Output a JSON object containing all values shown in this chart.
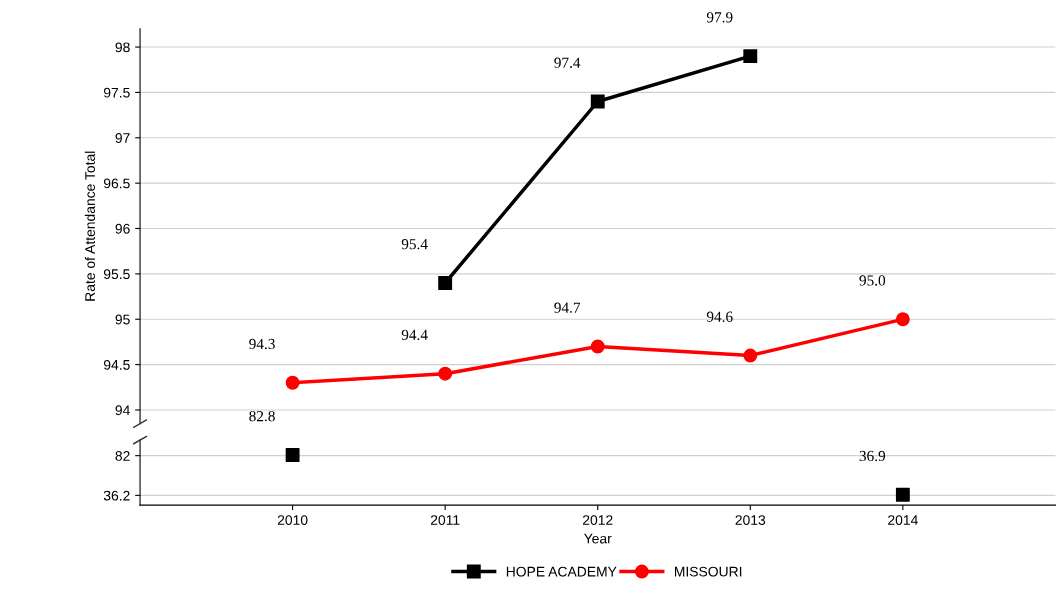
{
  "chart_data": [
    {
      "type": "line",
      "ylabel": "Rate of Attendance Total",
      "categories": [
        "2010",
        "2011",
        "2012",
        "2013",
        "2014"
      ],
      "series": [
        {
          "color": "#000000",
          "marker": "square",
          "values": [
            null,
            95.4,
            97.4,
            97.9,
            null
          ],
          "value_labels": [
            null,
            "95.4",
            "97.4",
            "97.9",
            null
          ]
        },
        {
          "color": "#ff0000",
          "marker": "circle",
          "values": [
            94.3,
            94.4,
            94.7,
            94.6,
            95.0
          ],
          "value_labels": [
            "94.3",
            "94.4",
            "94.7",
            "94.6",
            "95.0"
          ]
        }
      ],
      "ylim": [
        93.85,
        98.2
      ],
      "yticks": [
        94,
        94.5,
        95,
        95.5,
        96,
        96.5,
        97,
        97.5,
        98
      ],
      "tick_labels": "y",
      "grid": "y",
      "line_style": "solid"
    },
    {
      "type": "line",
      "xlabel": "Year",
      "categories": [
        "2010",
        "2011",
        "2012",
        "2013",
        "2014"
      ],
      "series": [
        {
          "name": "HOPE ACADEMY",
          "type": "scatter",
          "color": "#000000",
          "marker": "square",
          "values": [
            82.8,
            null,
            null,
            null,
            36.9
          ],
          "value_labels": [
            "82.8",
            null,
            null,
            null,
            "36.9"
          ]
        },
        {
          "name": "MISSOURI",
          "color": "#ff0000",
          "marker": "circle",
          "values": [
            null,
            null,
            null,
            null,
            null
          ]
        }
      ],
      "ylim": [
        25,
        100
      ],
      "yticks": [
        36.2,
        82
      ],
      "grid": "y",
      "legend": "bottom",
      "line_style": "solid"
    }
  ]
}
